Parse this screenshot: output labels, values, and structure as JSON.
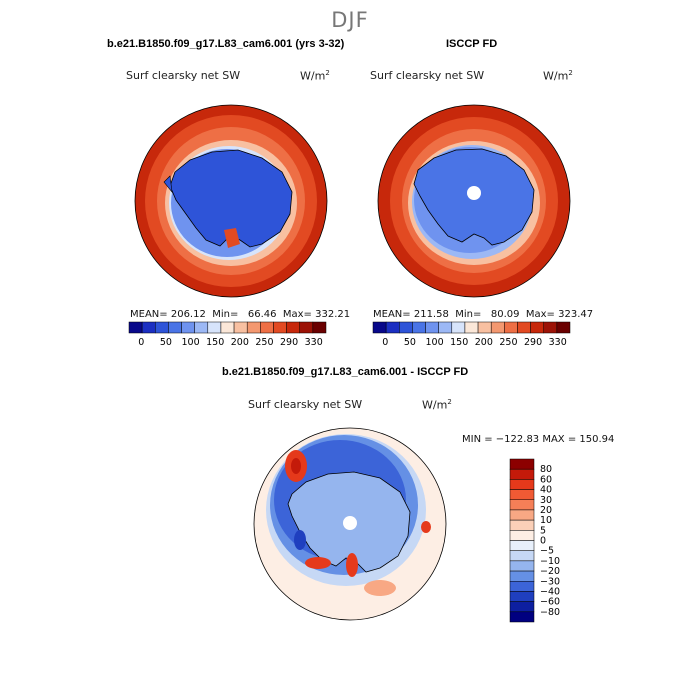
{
  "season": "DJF",
  "panels": [
    {
      "title": "b.e21.B1850.f09_g17.L83_cam6.001 (yrs 3-32)",
      "variable": "Surf clearsky net SW",
      "units": "W/m",
      "units_exp": "2",
      "stats": {
        "mean": "206.12",
        "min": "66.46",
        "max": "332.21"
      }
    },
    {
      "title": "ISCCP FD",
      "variable": "Surf clearsky net SW",
      "units": "W/m",
      "units_exp": "2",
      "stats": {
        "mean": "211.58",
        "min": "80.09",
        "max": "323.47"
      }
    },
    {
      "title": "b.e21.B1850.f09_g17.L83_cam6.001 - ISCCP FD",
      "variable": "Surf clearsky net SW",
      "units": "W/m",
      "units_exp": "2",
      "minmax": "MIN = −122.83  MAX = 150.94"
    }
  ],
  "labels": {
    "mean": "MEAN=",
    "min": "Min=",
    "max": "Max="
  },
  "colorbar_abs": {
    "ticks": [
      "0",
      "50",
      "100",
      "150",
      "200",
      "250",
      "290",
      "330"
    ],
    "colors": [
      "#08088a",
      "#1b2fc2",
      "#2e54d8",
      "#4a74e6",
      "#6f93ef",
      "#9cb8f5",
      "#d7e4fb",
      "#fbe7d8",
      "#f8c0a1",
      "#f39870",
      "#ee6f45",
      "#e24a22",
      "#c7280b",
      "#9c1206",
      "#6a0000"
    ]
  },
  "colorbar_diff": {
    "ticks": [
      "80",
      "60",
      "40",
      "30",
      "20",
      "10",
      "5",
      "0",
      "−5",
      "−10",
      "−20",
      "−30",
      "−40",
      "−60",
      "−80"
    ],
    "colors": [
      "#8c0000",
      "#c41a0a",
      "#e5391b",
      "#f05a34",
      "#f57f57",
      "#f8a884",
      "#fbd0b8",
      "#fdeee4",
      "#e8f0fb",
      "#c6d8f5",
      "#95b5ee",
      "#6590e5",
      "#3c64d8",
      "#1f3fbf",
      "#0d1fa0",
      "#000080"
    ]
  },
  "chart_data": [
    {
      "type": "heatmap",
      "title": "b.e21.B1850.f09_g17.L83_cam6.001 (yrs 3-32)",
      "projection": "south-polar stereographic",
      "variable": "Surf clearsky net SW",
      "units": "W/m2",
      "mean": 206.12,
      "min": 66.46,
      "max": 332.21,
      "levels": [
        0,
        50,
        100,
        150,
        200,
        250,
        290,
        330
      ]
    },
    {
      "type": "heatmap",
      "title": "ISCCP FD",
      "projection": "south-polar stereographic",
      "variable": "Surf clearsky net SW",
      "units": "W/m2",
      "mean": 211.58,
      "min": 80.09,
      "max": 323.47,
      "levels": [
        0,
        50,
        100,
        150,
        200,
        250,
        290,
        330
      ]
    },
    {
      "type": "heatmap",
      "title": "b.e21.B1850.f09_g17.L83_cam6.001 - ISCCP FD",
      "projection": "south-polar stereographic",
      "variable": "Surf clearsky net SW",
      "units": "W/m2",
      "min": -122.83,
      "max": 150.94,
      "levels": [
        -80,
        -60,
        -40,
        -30,
        -20,
        -10,
        -5,
        0,
        5,
        10,
        20,
        30,
        40,
        60,
        80
      ]
    }
  ]
}
